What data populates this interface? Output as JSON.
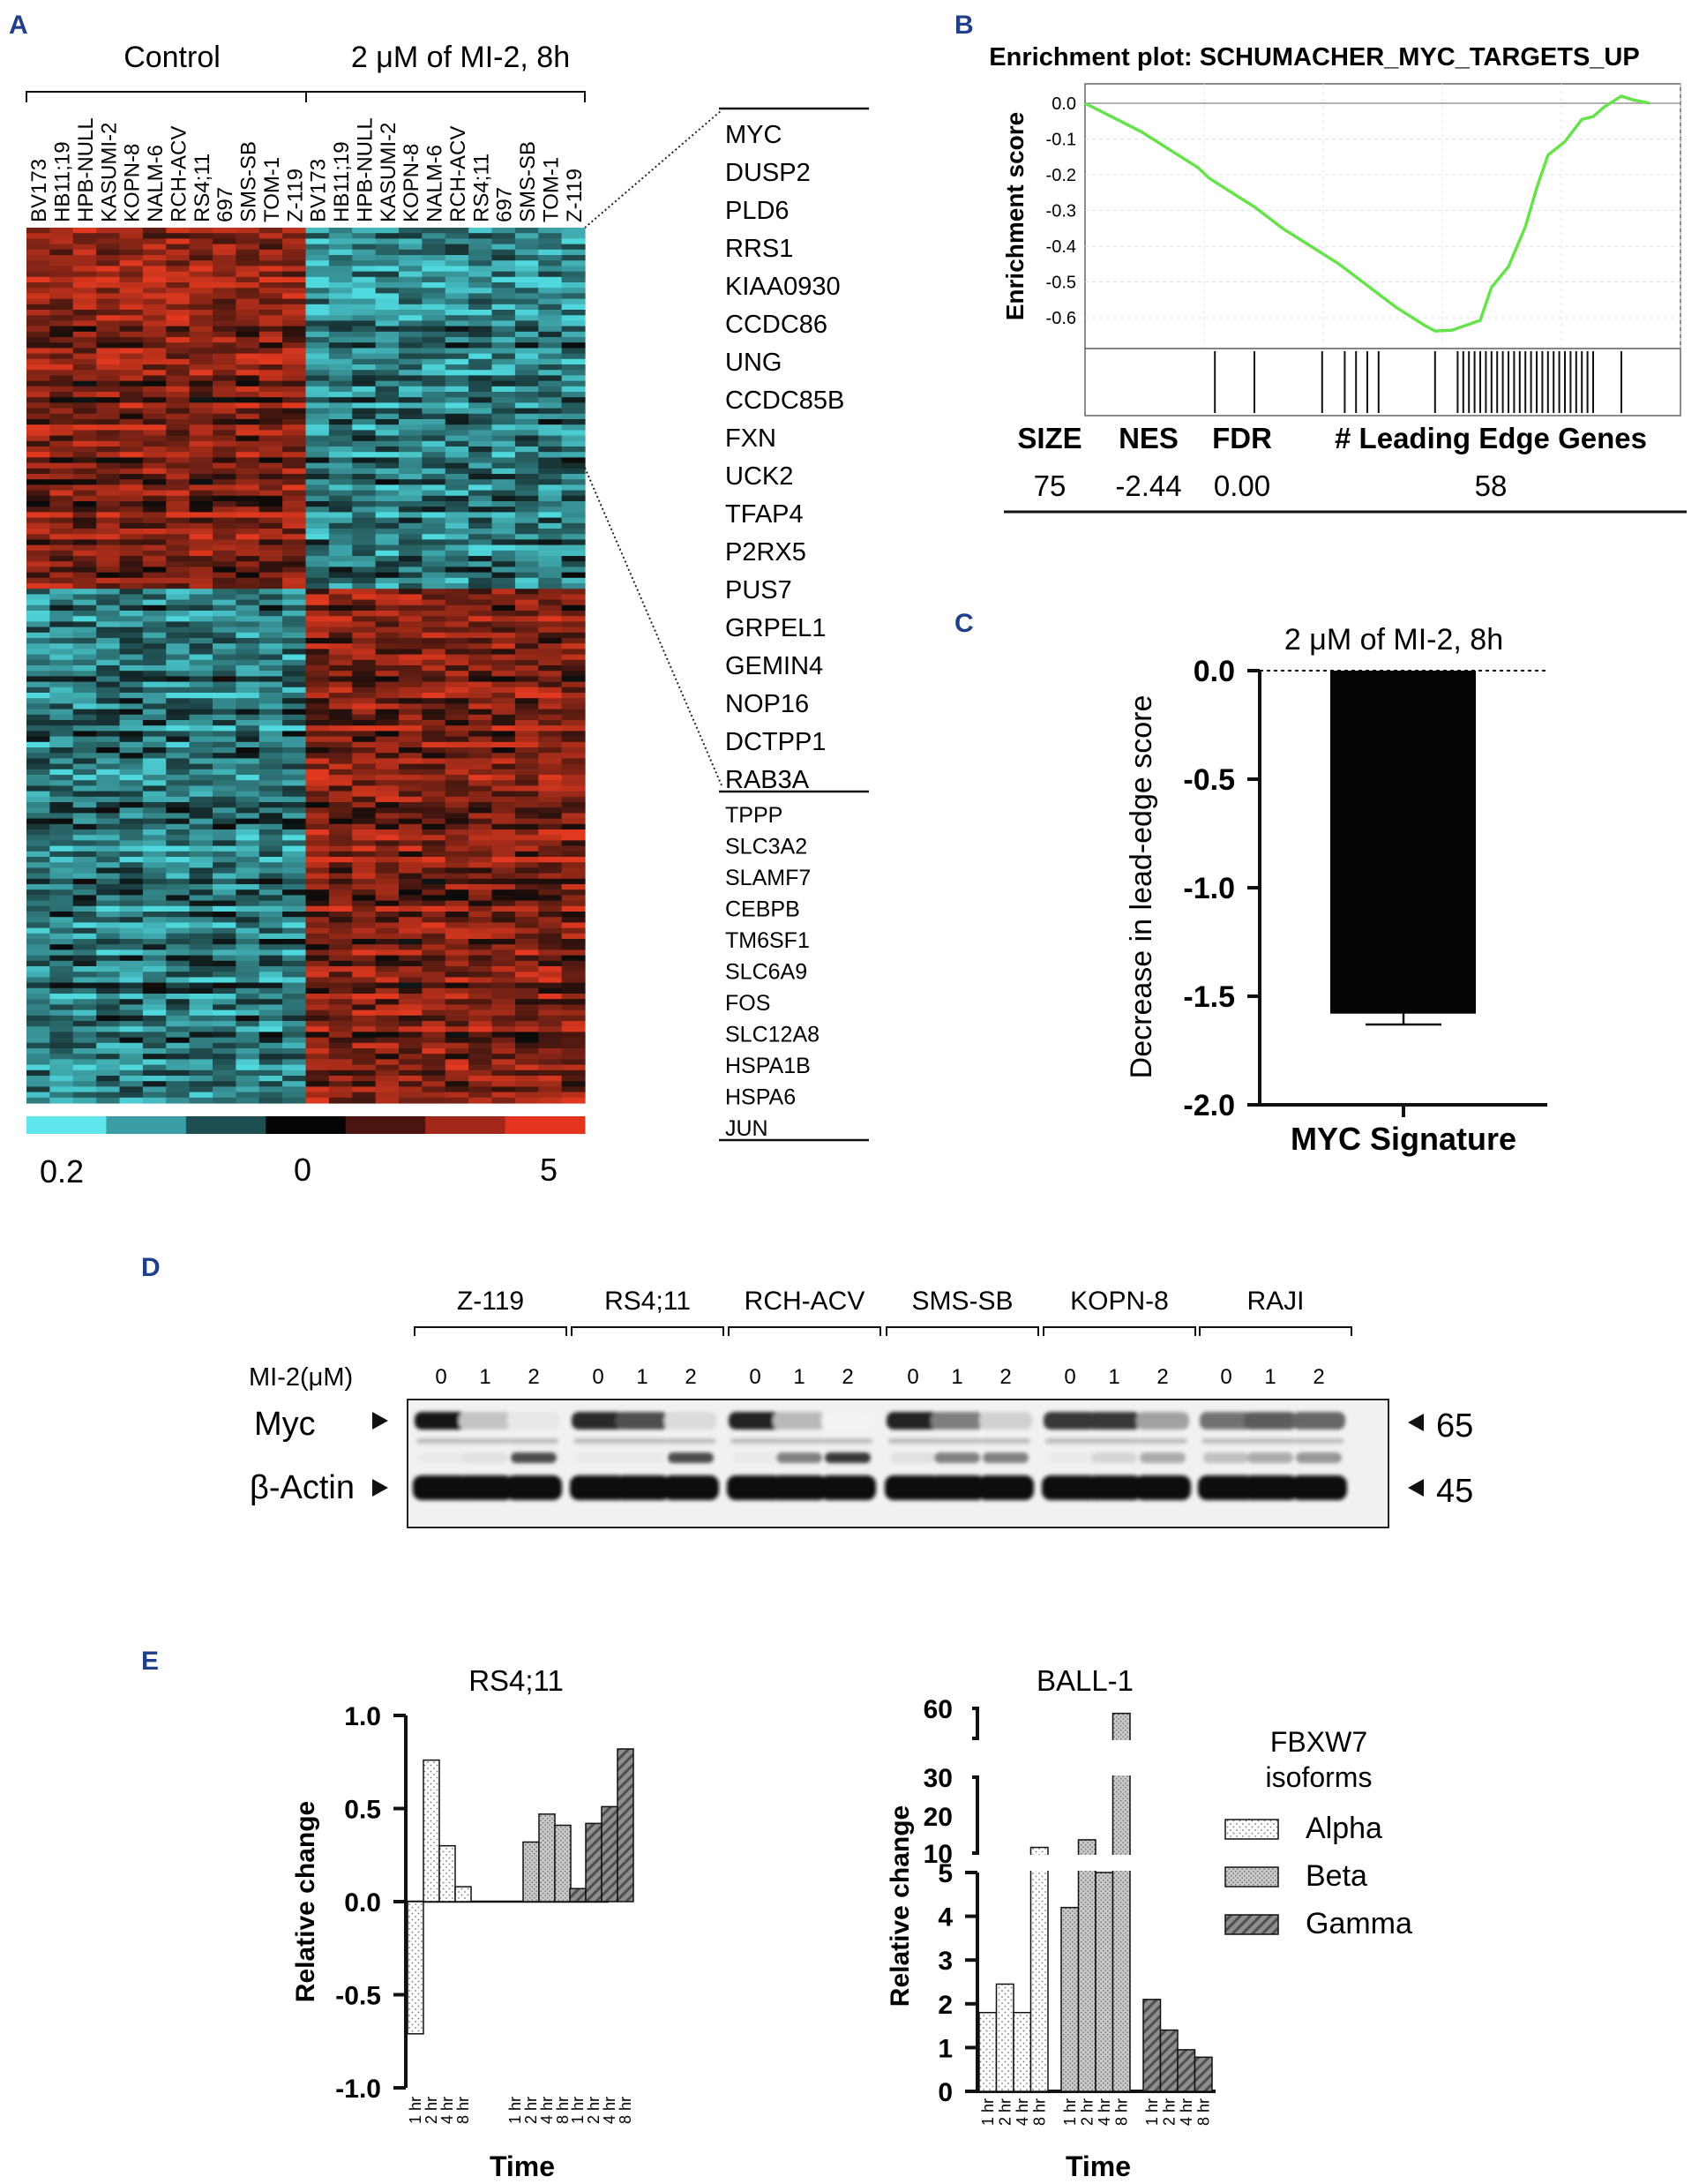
{
  "panels": {
    "A": {
      "letter": "A",
      "group_labels": [
        "Control",
        "2 μM of MI-2, 8h"
      ],
      "cell_lines_control": [
        "BV173",
        "HB11;19",
        "HPB-NULL",
        "KASUMI-2",
        "KOPN-8",
        "NALM-6",
        "RCH-ACV",
        "RS4;11",
        "697",
        "SMS-SB",
        "TOM-1",
        "Z-119"
      ],
      "cell_lines_treated": [
        "BV173",
        "HB11;19",
        "HPB-NULL",
        "KASUMI-2",
        "KOPN-8",
        "NALM-6",
        "RCH-ACV",
        "RS4;11",
        "697",
        "SMS-SB",
        "TOM-1",
        "Z-119"
      ],
      "genes_down": [
        "MYC",
        "DUSP2",
        "PLD6",
        "RRS1",
        "KIAA0930",
        "CCDC86",
        "UNG",
        "CCDC85B",
        "FXN",
        "UCK2",
        "TFAP4",
        "P2RX5",
        "PUS7",
        "GRPEL1",
        "GEMIN4",
        "NOP16",
        "DCTPP1",
        "RAB3A"
      ],
      "genes_up": [
        "TPPP",
        "SLC3A2",
        "SLAMF7",
        "CEBPB",
        "TM6SF1",
        "SLC6A9",
        "FOS",
        "SLC12A8",
        "HSPA1B",
        "HSPA6",
        "JUN"
      ],
      "colorbar_labels": [
        "0.2",
        "0",
        "5"
      ],
      "colorbar_colors": [
        "#5fe6ec",
        "#3a9ea4",
        "#1c4e52",
        "#050505",
        "#4a1410",
        "#a3281a",
        "#e3341f"
      ],
      "heatmap_colors": {
        "low": "#4fd8de",
        "mid": "#0a0a0a",
        "high": "#e0391f"
      }
    },
    "B": {
      "letter": "B",
      "title": "Enrichment plot: SCHUMACHER_MYC_TARGETS_UP",
      "ylabel": "Enrichment score",
      "yticks": [
        "0.0",
        "-0.1",
        "-0.2",
        "-0.3",
        "-0.4",
        "-0.5",
        "-0.6"
      ],
      "line_color": "#66e24a",
      "table_headers": [
        "SIZE",
        "NES",
        "FDR",
        "# Leading Edge Genes"
      ],
      "table_values": [
        "75",
        "-2.44",
        "0.00",
        "58"
      ]
    },
    "C": {
      "letter": "C",
      "title": "2 μM of MI-2, 8h",
      "ylabel": "Decrease in lead-edge score",
      "xlabel": "MYC Signature",
      "yticks": [
        "0.0",
        "-0.5",
        "-1.0",
        "-1.5",
        "-2.0"
      ]
    },
    "D": {
      "letter": "D",
      "cell_lines": [
        "Z-119",
        "RS4;11",
        "RCH-ACV",
        "SMS-SB",
        "KOPN-8",
        "RAJI"
      ],
      "dose_label": "MI-2(μM)",
      "doses": [
        "0",
        "1",
        "2"
      ],
      "bands": [
        "Myc",
        "β-Actin"
      ],
      "kda": [
        "65",
        "45"
      ]
    },
    "E": {
      "letter": "E",
      "legend_title": [
        "FBXW7",
        "isoforms"
      ],
      "legend_items": [
        "Alpha",
        "Beta",
        "Gamma"
      ]
    }
  },
  "chart_data": [
    {
      "type": "line",
      "title": "Enrichment plot: SCHUMACHER_MYC_TARGETS_UP",
      "ylabel": "Enrichment score",
      "ylim": [
        -0.7,
        0.0
      ],
      "x": [
        0,
        0.05,
        0.1,
        0.15,
        0.2,
        0.22,
        0.25,
        0.28,
        0.3,
        0.35,
        0.4,
        0.45,
        0.5,
        0.55,
        0.6,
        0.62,
        0.65,
        0.7,
        0.72,
        0.75,
        0.78,
        0.8,
        0.82,
        0.85,
        0.88,
        0.9,
        0.92,
        0.95,
        0.97,
        1.0
      ],
      "y": [
        0.0,
        -0.04,
        -0.08,
        -0.13,
        -0.18,
        -0.21,
        -0.24,
        -0.27,
        -0.29,
        -0.35,
        -0.4,
        -0.45,
        -0.51,
        -0.57,
        -0.62,
        -0.63,
        -0.64,
        -0.6,
        -0.52,
        -0.45,
        -0.35,
        -0.23,
        -0.15,
        -0.1,
        -0.05,
        -0.03,
        -0.01,
        0.02,
        0.01,
        0.0
      ],
      "hits": [
        0.23,
        0.3,
        0.42,
        0.46,
        0.48,
        0.5,
        0.52,
        0.62,
        0.66,
        0.67,
        0.68,
        0.69,
        0.7,
        0.71,
        0.72,
        0.73,
        0.74,
        0.75,
        0.76,
        0.77,
        0.78,
        0.79,
        0.8,
        0.81,
        0.82,
        0.83,
        0.84,
        0.85,
        0.86,
        0.87,
        0.88,
        0.89,
        0.9,
        0.95
      ]
    },
    {
      "type": "bar",
      "title": "2 μM of MI-2, 8h",
      "ylabel": "Decrease in lead-edge score",
      "categories": [
        "MYC Signature"
      ],
      "values": [
        -1.58
      ],
      "error": [
        0.05
      ],
      "ylim": [
        -2.0,
        0.0
      ]
    },
    {
      "type": "bar",
      "title": "RS4;11",
      "ylabel": "Relative change",
      "xlabel": "Time",
      "ylim": [
        -1.0,
        1.0
      ],
      "yticks": [
        "1.0",
        "0.5",
        "0.0",
        "-0.5",
        "-1.0"
      ],
      "categories": [
        "1 hr",
        "2 hr",
        "4 hr",
        "8 hr"
      ],
      "series": [
        {
          "name": "Alpha",
          "values": [
            -0.71,
            0.76,
            0.3,
            0.08
          ]
        },
        {
          "name": "Beta",
          "values": [
            0.0,
            0.32,
            0.47,
            0.41
          ]
        },
        {
          "name": "Gamma",
          "values": [
            0.07,
            0.42,
            0.51,
            0.82
          ]
        }
      ]
    },
    {
      "type": "bar",
      "title": "BALL-1",
      "ylabel": "Relative change",
      "xlabel": "Time",
      "ylim": [
        0,
        60
      ],
      "yticks_lower": [
        "5",
        "4",
        "3",
        "2",
        "1",
        "0"
      ],
      "yticks_upper": [
        "60",
        "30",
        "20",
        "10"
      ],
      "categories": [
        "1 hr",
        "2 hr",
        "4 hr",
        "8 hr"
      ],
      "series": [
        {
          "name": "Alpha",
          "values": [
            1.8,
            2.45,
            1.8,
            11.5
          ]
        },
        {
          "name": "Beta",
          "values": [
            4.2,
            13.5,
            5.0,
            55.0
          ]
        },
        {
          "name": "Gamma",
          "values": [
            2.1,
            1.4,
            0.95,
            0.78
          ]
        }
      ]
    }
  ]
}
